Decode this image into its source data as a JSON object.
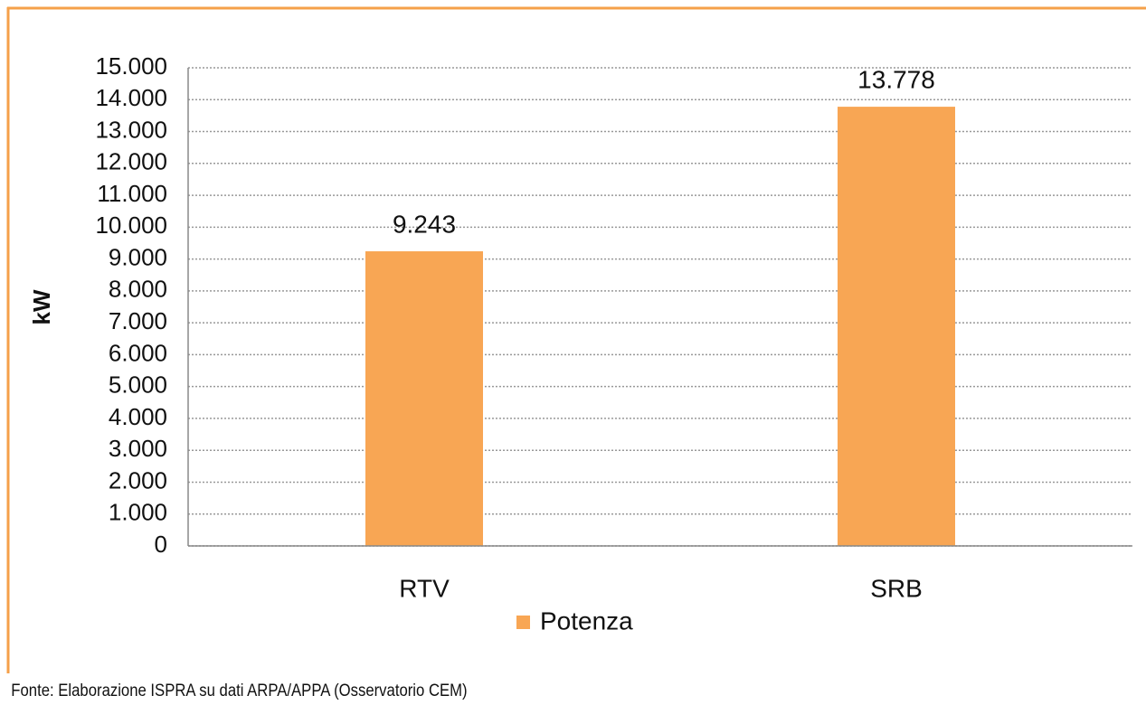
{
  "chart_data": {
    "type": "bar",
    "y_label": "kW",
    "categories": [
      "RTV",
      "SRB"
    ],
    "series": [
      {
        "name": "Potenza",
        "color": "#f8a654",
        "values": [
          9243,
          13778
        ],
        "value_labels": [
          "9.243",
          "13.778"
        ]
      }
    ],
    "ylim": [
      0,
      15000
    ],
    "yticks": [
      0,
      {
        "value": 1000,
        "label": "1.000"
      },
      {
        "value": 2000,
        "label": "2.000"
      },
      {
        "value": 3000,
        "label": "3.000"
      },
      {
        "value": 4000,
        "label": "4.000"
      },
      {
        "value": 5000,
        "label": "5.000"
      },
      {
        "value": 6000,
        "label": "6.000"
      },
      {
        "value": 7000,
        "label": "7.000"
      },
      {
        "value": 8000,
        "label": "8.000"
      },
      {
        "value": 9000,
        "label": "9.000"
      },
      {
        "value": 10000,
        "label": "10.000"
      },
      {
        "value": 11000,
        "label": "11.000"
      },
      {
        "value": 12000,
        "label": "12.000"
      },
      {
        "value": 13000,
        "label": "13.000"
      },
      {
        "value": 14000,
        "label": "14.000"
      },
      {
        "value": 15000,
        "label": "15.000"
      }
    ],
    "grid": true,
    "legend": "bottom",
    "source": "Fonte: Elaborazione ISPRA su dati ARPA/APPA (Osservatorio CEM)"
  }
}
